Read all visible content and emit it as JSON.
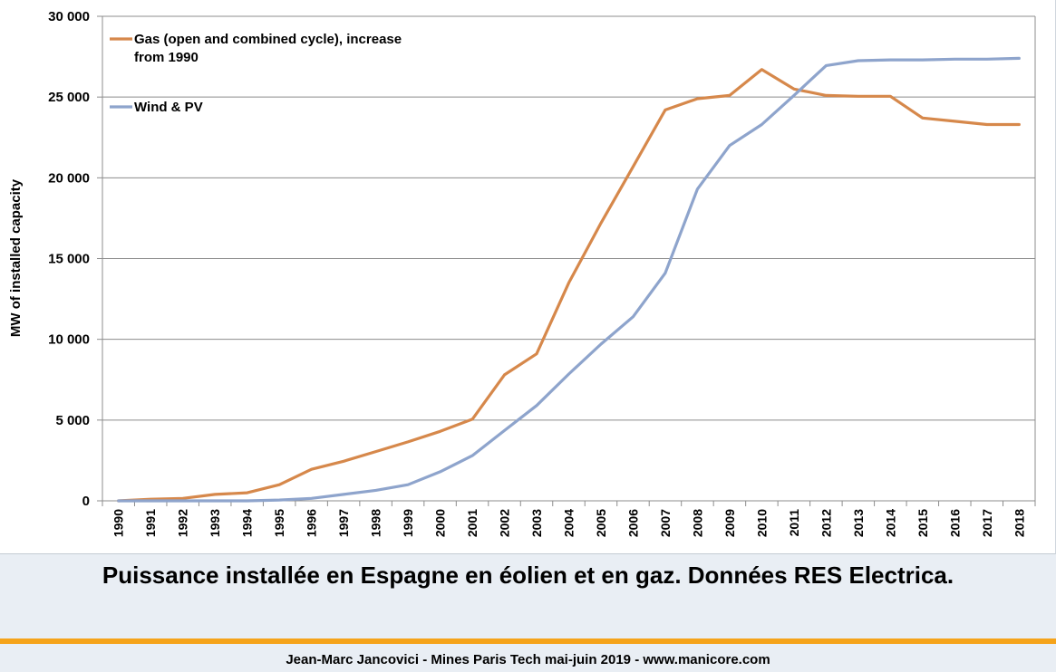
{
  "chart_data": {
    "type": "line",
    "ylabel": "MW of installed capacity",
    "ylim": [
      0,
      30000
    ],
    "yticks": [
      0,
      5000,
      10000,
      15000,
      20000,
      25000,
      30000
    ],
    "ytick_labels": [
      "0",
      "5 000",
      "10 000",
      "15 000",
      "20 000",
      "25 000",
      "30 000"
    ],
    "x": [
      "1990",
      "1991",
      "1992",
      "1993",
      "1994",
      "1995",
      "1996",
      "1997",
      "1998",
      "1999",
      "2000",
      "2001",
      "2002",
      "2003",
      "2004",
      "2005",
      "2006",
      "2007",
      "2008",
      "2009",
      "2010",
      "2011",
      "2012",
      "2013",
      "2014",
      "2015",
      "2016",
      "2017",
      "2018"
    ],
    "grid": true,
    "legend_position": "top-left",
    "series": [
      {
        "name": "Gas (open and combined cycle), increase from 1990",
        "name_lines": [
          "Gas (open and combined cycle), increase",
          "from 1990"
        ],
        "color": "#d6884b",
        "values": [
          0,
          100,
          150,
          400,
          500,
          1000,
          1950,
          2450,
          3050,
          3650,
          4300,
          5050,
          7800,
          9100,
          13500,
          17200,
          20700,
          24200,
          24900,
          25100,
          26700,
          25500,
          25100,
          25050,
          25050,
          23700,
          23500,
          23300,
          23300
        ]
      },
      {
        "name": "Wind & PV",
        "name_lines": [
          "Wind & PV"
        ],
        "color": "#8ea4cc",
        "values": [
          0,
          0,
          0,
          0,
          0,
          50,
          150,
          400,
          650,
          1000,
          1800,
          2800,
          4350,
          5900,
          7850,
          9700,
          11400,
          14100,
          19300,
          22000,
          23300,
          25100,
          26950,
          27250,
          27300,
          27300,
          27350,
          27350,
          27400
        ]
      }
    ]
  },
  "caption": "Puissance installée en Espagne en éolien et en gaz. Données RES Electrica.",
  "footer": "Jean-Marc Jancovici - Mines Paris Tech mai-juin 2019 - www.manicore.com"
}
